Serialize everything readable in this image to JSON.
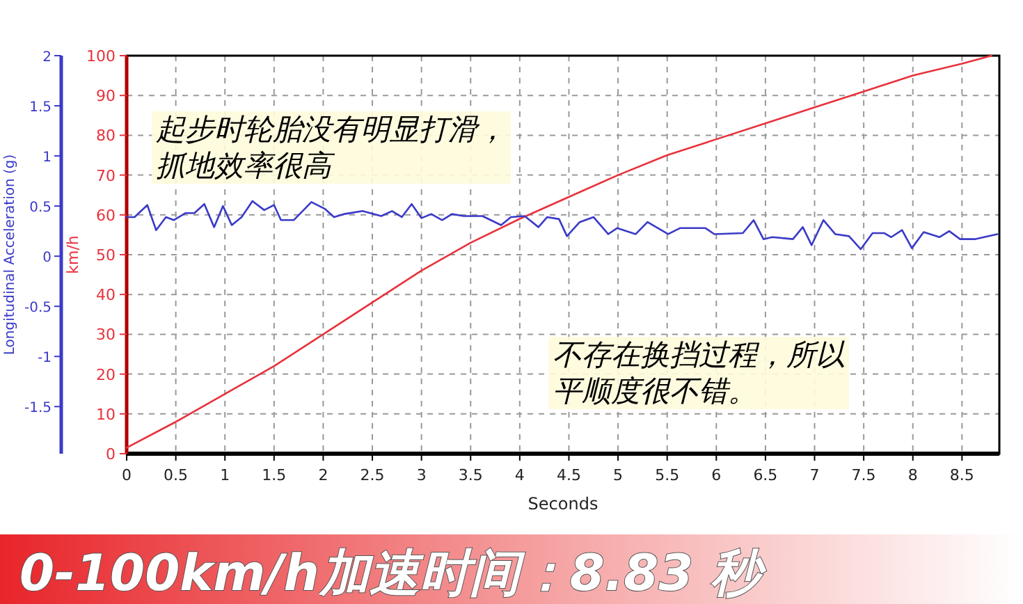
{
  "chart_data": {
    "type": "line",
    "title": "0-100km/h加速时间：8.83 秒",
    "xlabel": "Seconds",
    "ylabel": "km/h",
    "y2label": "Longitudinal Acceleration (g)",
    "annotations": [
      "起步时轮胎没有明显打滑，抓地效率很高",
      "不存在换挡过程，所以平顺度很不错。"
    ],
    "xlim": [
      0,
      8.88
    ],
    "xticks": [
      0,
      0.5,
      1,
      1.5,
      2,
      2.5,
      3,
      3.5,
      4,
      4.5,
      5,
      5.5,
      6,
      6.5,
      7,
      7.5,
      8,
      8.5
    ],
    "ylim": [
      0,
      100
    ],
    "yticks": [
      0,
      10,
      20,
      30,
      40,
      50,
      60,
      70,
      80,
      90,
      100
    ],
    "y2lim": [
      -1.97,
      2
    ],
    "y2ticks": [
      2,
      1.5,
      1,
      0.5,
      0,
      -0.5,
      -1,
      -1.5
    ],
    "grid": true,
    "marker": "none",
    "line_style": "solid",
    "series": [
      {
        "color": "#e8323c",
        "x": [
          0,
          0.5,
          1,
          1.5,
          2,
          2.5,
          3,
          3.5,
          4,
          4.5,
          5,
          5.5,
          6,
          6.5,
          7,
          7.5,
          8,
          8.5,
          8.8
        ],
        "values": [
          1.5,
          8,
          15,
          22,
          30,
          38,
          46,
          53,
          59,
          64.5,
          70,
          75,
          79,
          83,
          87,
          91,
          95,
          98,
          100
        ]
      },
      {
        "color": "#3a3ac8",
        "axis": "y2",
        "x": [
          0,
          0.08,
          0.21,
          0.3,
          0.4,
          0.48,
          0.6,
          0.69,
          0.79,
          0.89,
          0.98,
          1.07,
          1.17,
          1.28,
          1.4,
          1.5,
          1.57,
          1.7,
          1.88,
          2.02,
          2.11,
          2.21,
          2.4,
          2.59,
          2.7,
          2.8,
          2.9,
          3.0,
          3.1,
          3.21,
          3.31,
          3.43,
          3.62,
          3.81,
          3.91,
          4.05,
          4.19,
          4.28,
          4.4,
          4.48,
          4.61,
          4.75,
          4.9,
          4.99,
          5.18,
          5.3,
          5.51,
          5.63,
          5.89,
          5.98,
          6.27,
          6.38,
          6.48,
          6.57,
          6.78,
          6.88,
          6.97,
          7.09,
          7.21,
          7.35,
          7.47,
          7.59,
          7.71,
          7.78,
          7.89,
          7.99,
          8.11,
          8.27,
          8.37,
          8.48,
          8.63,
          8.86
        ],
        "values": [
          0.39,
          0.39,
          0.51,
          0.26,
          0.39,
          0.36,
          0.43,
          0.43,
          0.52,
          0.29,
          0.5,
          0.31,
          0.39,
          0.55,
          0.46,
          0.51,
          0.36,
          0.36,
          0.54,
          0.47,
          0.39,
          0.42,
          0.45,
          0.4,
          0.45,
          0.39,
          0.52,
          0.38,
          0.42,
          0.36,
          0.42,
          0.4,
          0.4,
          0.31,
          0.39,
          0.4,
          0.29,
          0.39,
          0.37,
          0.2,
          0.34,
          0.39,
          0.22,
          0.28,
          0.22,
          0.34,
          0.22,
          0.28,
          0.28,
          0.22,
          0.23,
          0.36,
          0.17,
          0.19,
          0.17,
          0.29,
          0.11,
          0.36,
          0.22,
          0.2,
          0.07,
          0.23,
          0.23,
          0.19,
          0.26,
          0.08,
          0.24,
          0.19,
          0.25,
          0.17,
          0.17,
          0.22
        ]
      }
    ]
  }
}
